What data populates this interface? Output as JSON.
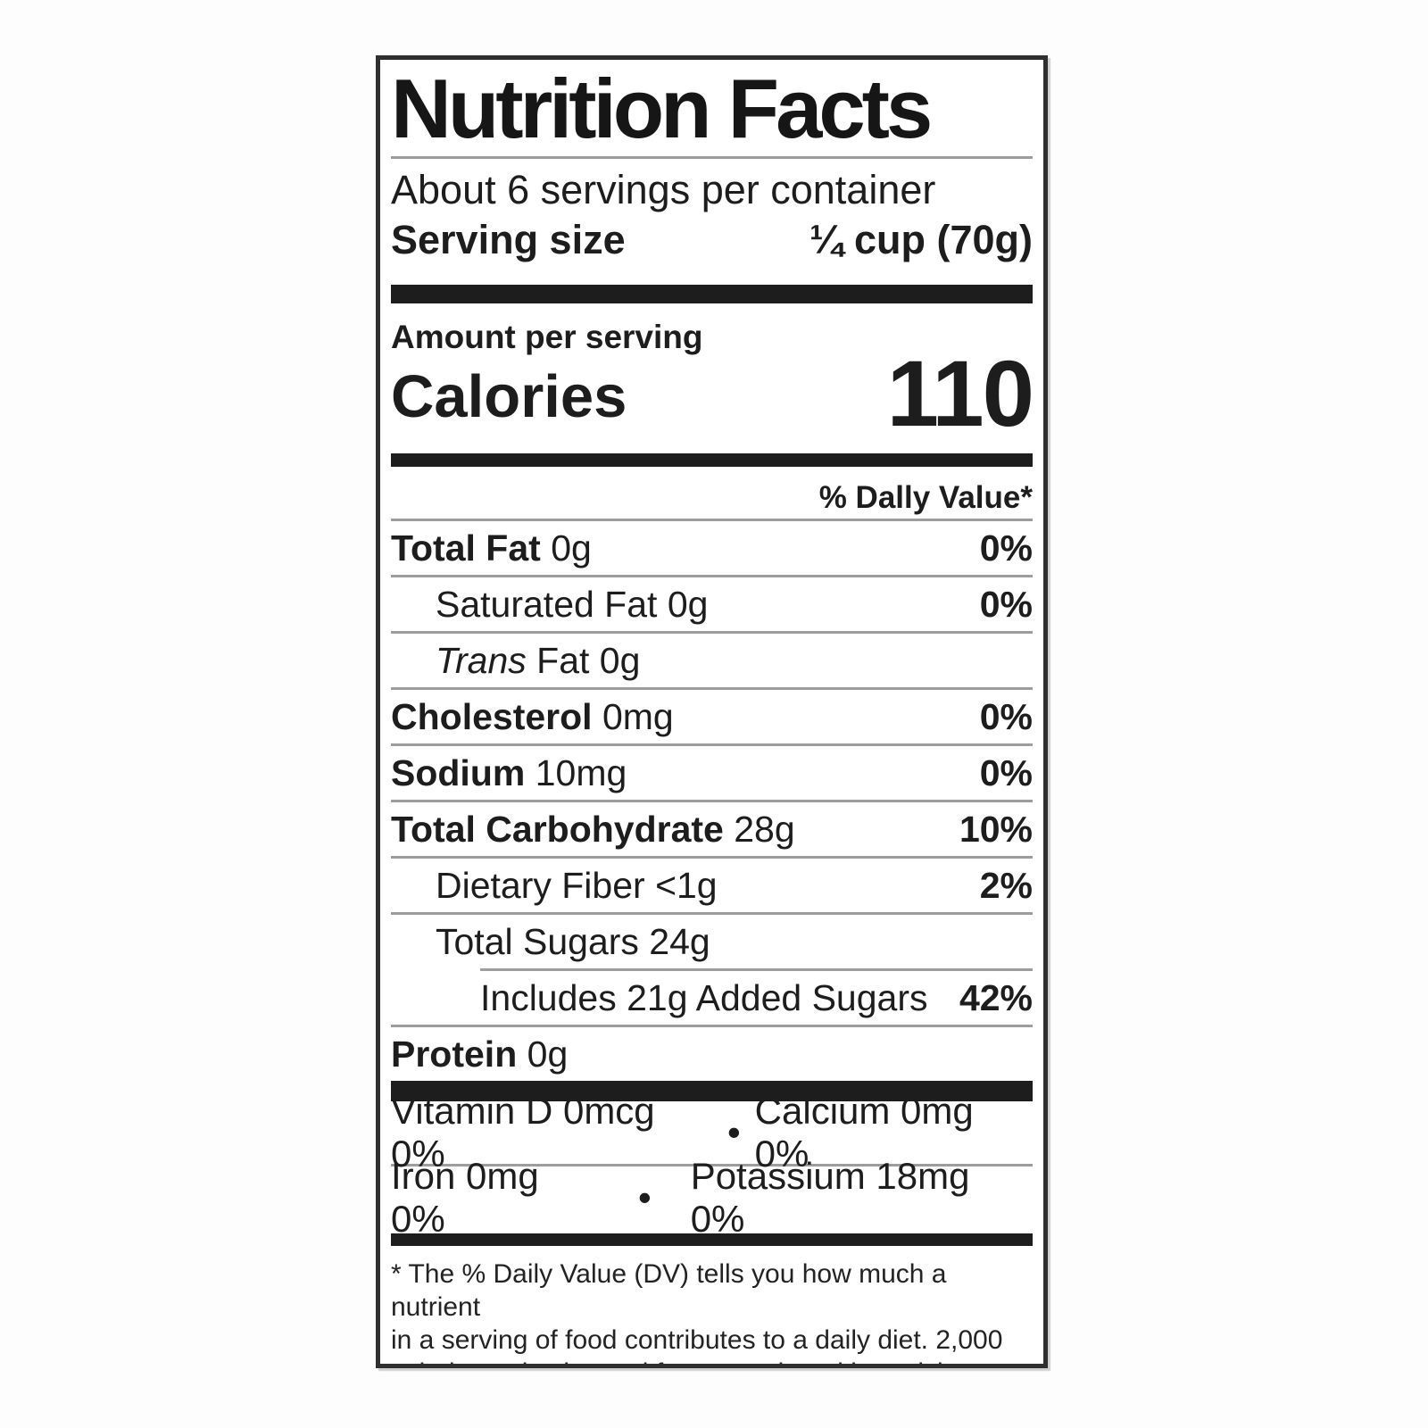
{
  "label": {
    "title": "Nutrition Facts",
    "servings_per_container": "About 6 servings per container",
    "serving_size_label": "Serving size",
    "serving_size_value": "¼ cup (70g)",
    "amount_per_serving": "Amount per serving",
    "calories_label": "Calories",
    "calories_value": "110",
    "daily_value_header": "% Dally Value*",
    "rows": [
      {
        "name": "Total Fat",
        "amount": " 0g",
        "dv": "0%"
      },
      {
        "name": "Saturated Fat",
        "amount": " 0g",
        "dv": "0%"
      },
      {
        "name": "Trans",
        "amount": " Fat 0g",
        "dv": ""
      },
      {
        "name": "Cholesterol",
        "amount": " 0mg",
        "dv": "0%"
      },
      {
        "name": "Sodium",
        "amount": " 10mg",
        "dv": "0%"
      },
      {
        "name": "Total Carbohydrate",
        "amount": " 28g",
        "dv": "10%"
      },
      {
        "name": "Dietary Fiber",
        "amount": " <1g",
        "dv": "2%"
      },
      {
        "name": "Total Sugars",
        "amount": " 24g",
        "dv": ""
      },
      {
        "name": "Includes 21g Added Sugars",
        "amount": "",
        "dv": "42%"
      },
      {
        "name": "Protein",
        "amount": " 0g",
        "dv": ""
      }
    ],
    "micronutrients": [
      {
        "left": "Vitamin D 0mcg 0%",
        "bullet": "•",
        "right": "Calcium 0mg 0%"
      },
      {
        "left": "Iron 0mg 0%",
        "bullet": "•",
        "right": "Potassium 18mg 0%"
      }
    ],
    "footnote_lines": [
      "* The % Daily Value (DV) tells you how much a nutrient",
      "in a serving of food contributes to a daily diet. 2,000",
      "calories a day is used for general nutrition advice."
    ],
    "colors": {
      "ink": "#1d1d1d",
      "hairline": "#9d9d9d",
      "background": "#ffffff"
    }
  }
}
